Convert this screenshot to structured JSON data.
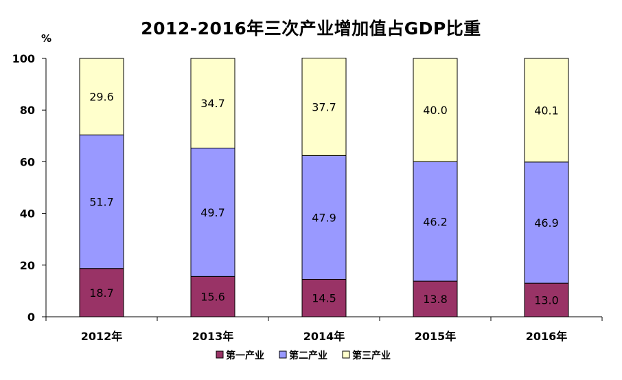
{
  "chart_data": {
    "type": "bar",
    "stacked": true,
    "title": "2012-2016年三次产业增加值占GDP比重",
    "ylabel": "%",
    "xlabel": "",
    "ylim": [
      0,
      100
    ],
    "yticks": [
      0,
      20,
      40,
      60,
      80,
      100
    ],
    "categories": [
      "2012年",
      "2013年",
      "2014年",
      "2015年",
      "2016年"
    ],
    "series": [
      {
        "name": "第一产业",
        "color": "#993366",
        "values": [
          18.7,
          15.6,
          14.5,
          13.8,
          13.0
        ],
        "labels": [
          "18.7",
          "15.6",
          "14.5",
          "13.8",
          "13.0"
        ]
      },
      {
        "name": "第二产业",
        "color": "#9999FF",
        "values": [
          51.7,
          49.7,
          47.9,
          46.2,
          46.9
        ],
        "labels": [
          "51.7",
          "49.7",
          "47.9",
          "46.2",
          "46.9"
        ]
      },
      {
        "name": "第三产业",
        "color": "#FFFFCC",
        "values": [
          29.6,
          34.7,
          37.7,
          40.0,
          40.1
        ],
        "labels": [
          "29.6",
          "34.7",
          "37.7",
          "40.0",
          "40.1"
        ]
      }
    ],
    "grid": false,
    "legend": "bottom"
  }
}
